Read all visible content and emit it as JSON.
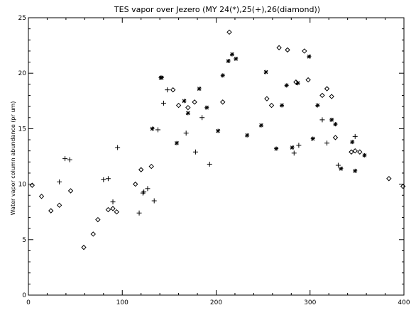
{
  "chart_data": {
    "type": "scatter",
    "title": "TES vapor over Jezero (MY 24(*),25(+),26(diamond))",
    "xlabel": "",
    "ylabel": "Water vapor column abundance (pr um)",
    "xlim": [
      0,
      400
    ],
    "ylim": [
      0,
      25
    ],
    "x_ticks": [
      "0",
      "100",
      "200",
      "300",
      "400"
    ],
    "y_ticks": [
      "0",
      "5",
      "10",
      "15",
      "20",
      "25"
    ],
    "grid": false,
    "series": [
      {
        "marker": "asterisk",
        "x": [
          132,
          141,
          142,
          158,
          166,
          170,
          182,
          190,
          202,
          207,
          213,
          217,
          221,
          233,
          248,
          253,
          264,
          270,
          275,
          281,
          287,
          299,
          303,
          308,
          323,
          327,
          333,
          345,
          348,
          358
        ],
        "y": [
          15.0,
          19.6,
          19.6,
          13.7,
          17.5,
          16.4,
          18.6,
          16.9,
          14.8,
          19.8,
          21.1,
          21.7,
          21.3,
          14.4,
          15.3,
          20.1,
          13.2,
          17.1,
          18.9,
          13.3,
          19.1,
          21.5,
          14.1,
          17.1,
          15.8,
          15.4,
          11.4,
          13.8,
          11.2,
          12.6
        ]
      },
      {
        "marker": "plus",
        "x": [
          33,
          39,
          44,
          80,
          85,
          90,
          95,
          118,
          122,
          123,
          127,
          134,
          138,
          144,
          148,
          168,
          178,
          185,
          193,
          283,
          288,
          313,
          318,
          330,
          348
        ],
        "y": [
          10.2,
          12.3,
          12.2,
          10.4,
          10.5,
          8.4,
          13.3,
          7.4,
          9.2,
          9.3,
          9.6,
          8.5,
          14.9,
          17.3,
          18.5,
          14.6,
          12.9,
          16.0,
          11.8,
          12.8,
          13.5,
          15.8,
          13.7,
          11.7,
          14.3
        ]
      },
      {
        "marker": "diamond",
        "x": [
          4,
          14,
          24,
          33,
          45,
          59,
          69,
          74,
          85,
          90,
          94,
          114,
          120,
          131,
          154,
          160,
          170,
          177,
          207,
          214,
          254,
          259,
          267,
          276,
          285,
          294,
          298,
          313,
          318,
          323,
          327,
          344,
          348,
          353,
          384,
          399
        ],
        "y": [
          9.9,
          8.9,
          7.6,
          8.1,
          9.4,
          4.3,
          5.5,
          6.8,
          7.7,
          7.8,
          7.5,
          10.0,
          11.3,
          11.6,
          18.5,
          17.1,
          16.9,
          17.4,
          17.4,
          23.7,
          17.7,
          17.1,
          22.3,
          22.1,
          19.2,
          22.0,
          19.4,
          18.0,
          18.6,
          17.9,
          14.2,
          12.9,
          13.0,
          12.9,
          10.5,
          9.8
        ]
      }
    ]
  }
}
